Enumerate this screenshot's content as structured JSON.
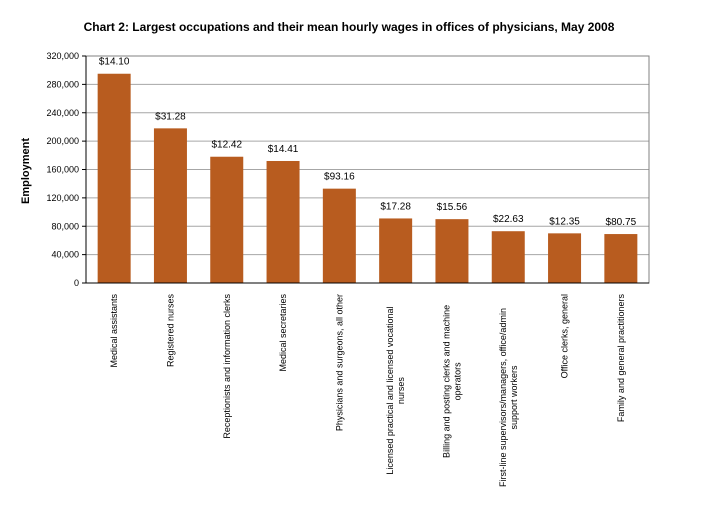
{
  "chart_data": {
    "type": "bar",
    "title": "Chart 2: Largest occupations and their mean hourly wages in offices of physicians, May 2008",
    "xlabel": "",
    "ylabel": "Employment",
    "ylim": [
      0,
      320000
    ],
    "yticks": [
      "0",
      "40,000",
      "80,000",
      "120,000",
      "160,000",
      "200,000",
      "240,000",
      "280,000",
      "320,000"
    ],
    "grid": true,
    "legend": "none",
    "bar_color": "#b85c1f",
    "categories": [
      [
        "Medical assistants"
      ],
      [
        "Registered nurses"
      ],
      [
        "Receptionists and information clerks"
      ],
      [
        "Medical secretaries"
      ],
      [
        "Physicians and surgeons, all other"
      ],
      [
        "Licensed practical and licensed vocational",
        "nurses"
      ],
      [
        "Billing and posting clerks and machine",
        "operators"
      ],
      [
        "First-line supervisors/managers, office/admin",
        "support workers"
      ],
      [
        "Office clerks, general"
      ],
      [
        "Family and general practitioners"
      ]
    ],
    "values": [
      295000,
      218000,
      178000,
      172000,
      133000,
      91000,
      90000,
      73000,
      70000,
      69000
    ],
    "data_labels": [
      "$14.10",
      "$31.28",
      "$12.42",
      "$14.41",
      "$93.16",
      "$17.28",
      "$15.56",
      "$22.63",
      "$12.35",
      "$80.75"
    ]
  }
}
